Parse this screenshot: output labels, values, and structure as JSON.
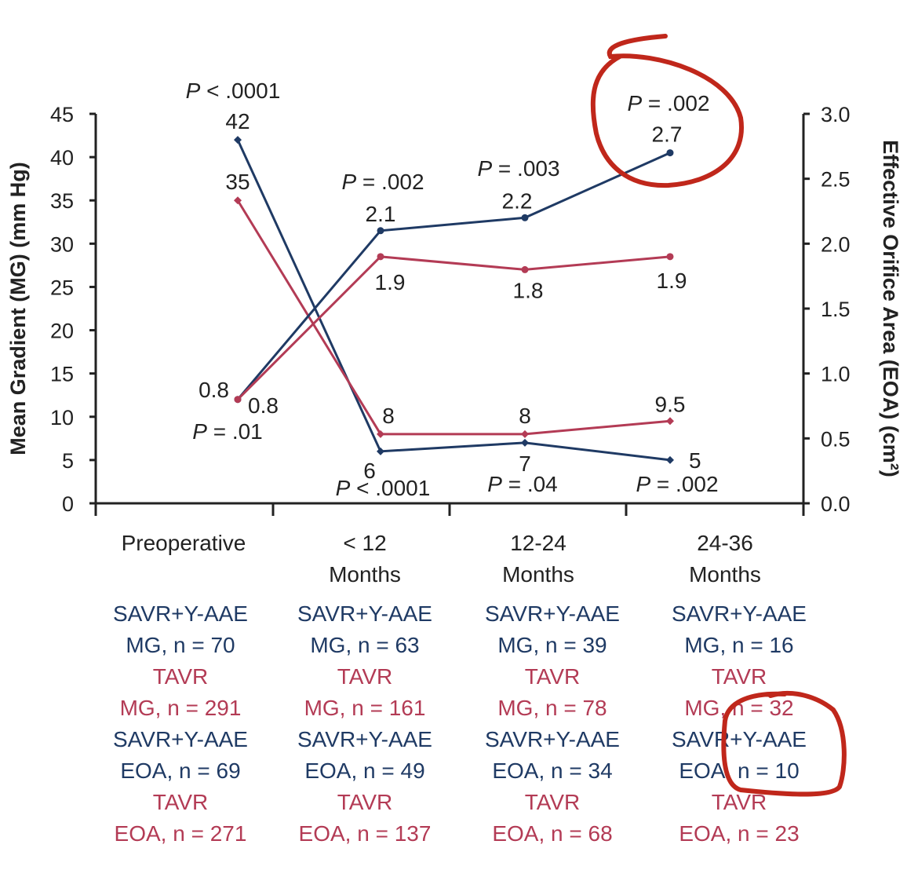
{
  "colors": {
    "savr": "#1f3a64",
    "tavr": "#b33b55",
    "axis": "#222222",
    "annotation": "#c0271b"
  },
  "chart_data": {
    "type": "line",
    "title": "",
    "ylabel_left": "Mean Gradient (MG) (mm Hg)",
    "ylabel_right": "Effective Orifice Area (EOA) (cm²)",
    "ylim_left": [
      0,
      45
    ],
    "ylim_right": [
      0,
      3.0
    ],
    "yticks_left": [
      "0",
      "5",
      "10",
      "15",
      "20",
      "25",
      "30",
      "35",
      "40",
      "45"
    ],
    "yticks_right": [
      "0.0",
      "0.5",
      "1.0",
      "1.5",
      "2.0",
      "2.5",
      "3.0"
    ],
    "categories": [
      {
        "line1": "Preoperative",
        "line2": ""
      },
      {
        "line1": "< 12",
        "line2": "Months"
      },
      {
        "line1": "12-24",
        "line2": "Months"
      },
      {
        "line1": "24-36",
        "line2": "Months"
      }
    ],
    "series": [
      {
        "name": "SAVR+Y-AAE MG",
        "group": "savr",
        "axis": "left",
        "values": [
          42,
          6,
          7,
          5
        ],
        "labels": [
          "42",
          "6",
          "7",
          "5"
        ]
      },
      {
        "name": "TAVR MG",
        "group": "tavr",
        "axis": "left",
        "values": [
          35,
          8,
          8,
          9.5
        ],
        "labels": [
          "35",
          "8",
          "8",
          "9.5"
        ]
      },
      {
        "name": "SAVR+Y-AAE EOA",
        "group": "savr",
        "axis": "right",
        "values": [
          0.8,
          2.1,
          2.2,
          2.7
        ],
        "labels": [
          "0.8",
          "2.1",
          "2.2",
          "2.7"
        ]
      },
      {
        "name": "TAVR EOA",
        "group": "tavr",
        "axis": "right",
        "values": [
          0.8,
          1.9,
          1.8,
          1.9
        ],
        "labels": [
          "0.8",
          "1.9",
          "1.8",
          "1.9"
        ]
      }
    ],
    "p_values_eoa": [
      "P = .01",
      "P = .002",
      "P = .003",
      "P = .002"
    ],
    "p_values_mg": [
      "P < .0001",
      "P < .0001",
      "P = .04",
      "P = .002"
    ],
    "sample_sizes": [
      {
        "savr_mg": "MG, n = 70",
        "tavr_mg": "MG, n = 291",
        "savr_eoa": "EOA, n = 69",
        "tavr_eoa": "EOA, n = 271"
      },
      {
        "savr_mg": "MG, n = 63",
        "tavr_mg": "MG, n = 161",
        "savr_eoa": "EOA, n = 49",
        "tavr_eoa": "EOA, n = 137"
      },
      {
        "savr_mg": "MG, n = 39",
        "tavr_mg": "MG, n = 78",
        "savr_eoa": "EOA, n = 34",
        "tavr_eoa": "EOA, n = 68"
      },
      {
        "savr_mg": "MG, n = 16",
        "tavr_mg": "MG, n = 32",
        "savr_eoa": "EOA, n = 10",
        "tavr_eoa": "EOA, n = 23"
      }
    ],
    "group_names": {
      "savr": "SAVR+Y-AAE",
      "tavr": "TAVR"
    }
  }
}
